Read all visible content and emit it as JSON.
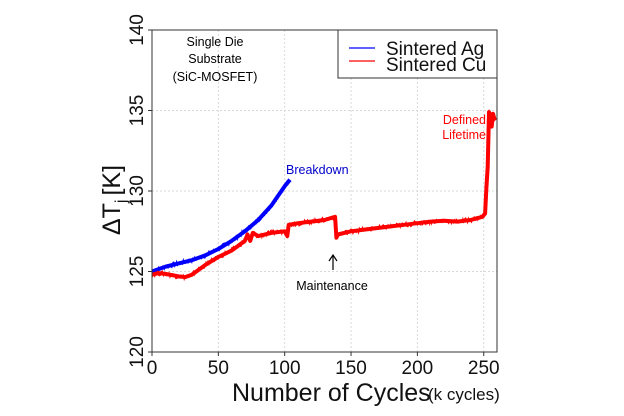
{
  "chart_data": {
    "type": "line",
    "title": "",
    "xlabel": "Number of Cycles",
    "xlabel_unit": "(k cycles)",
    "ylabel": "ΔT",
    "ylabel_sub": "j",
    "ylabel_unit": "[K]",
    "xlim": [
      0,
      260
    ],
    "ylim": [
      120,
      140
    ],
    "xticks": [
      0,
      50,
      100,
      150,
      200,
      250
    ],
    "yticks": [
      120,
      125,
      130,
      135,
      140
    ],
    "xtick_labels": [
      "0",
      "50",
      "100",
      "150",
      "200",
      "250"
    ],
    "ytick_labels": [
      "120",
      "125",
      "130",
      "135",
      "140"
    ],
    "grid": true,
    "legend": {
      "placement": "top-right",
      "entries": [
        "Sintered Ag",
        "Sintered Cu"
      ]
    },
    "series": [
      {
        "name": "Sintered Ag",
        "color": "#0000ff",
        "x": [
          0,
          10,
          20,
          30,
          40,
          50,
          60,
          70,
          80,
          90,
          95,
          100,
          104
        ],
        "y": [
          125.0,
          125.3,
          125.5,
          125.7,
          126.0,
          126.4,
          126.9,
          127.5,
          128.2,
          129.1,
          129.7,
          130.3,
          130.7
        ]
      },
      {
        "name": "Sintered Cu",
        "color": "#ff0000",
        "x": [
          0,
          5,
          10,
          20,
          25,
          30,
          40,
          50,
          60,
          70,
          72,
          74,
          76,
          80,
          90,
          100,
          102,
          103,
          110,
          120,
          130,
          138,
          139,
          140,
          150,
          160,
          170,
          180,
          190,
          200,
          210,
          220,
          230,
          240,
          249,
          251,
          252,
          253,
          254,
          255,
          256,
          257,
          258,
          259
        ],
        "y": [
          124.8,
          124.9,
          124.85,
          124.7,
          124.65,
          124.8,
          125.4,
          125.9,
          126.3,
          126.9,
          127.3,
          126.9,
          127.4,
          127.2,
          127.4,
          127.5,
          127.2,
          127.9,
          128.0,
          128.1,
          128.2,
          128.4,
          127.1,
          127.3,
          127.5,
          127.6,
          127.7,
          127.8,
          127.9,
          128.0,
          128.1,
          128.15,
          128.1,
          128.2,
          128.4,
          128.6,
          130.2,
          131.5,
          134.9,
          134.6,
          134.0,
          134.8,
          134.5,
          134.4
        ]
      }
    ],
    "annotations": [
      {
        "text": "Single Die",
        "color": "#000000"
      },
      {
        "text": "Substrate",
        "color": "#000000"
      },
      {
        "text": "(SiC-MOSFET)",
        "color": "#000000"
      },
      {
        "text": "Breakdown",
        "color": "#0000cc",
        "x": 104,
        "y": 130.7
      },
      {
        "text": "Maintenance",
        "color": "#000000",
        "x": 138,
        "y": 127.0
      },
      {
        "text": "Defined",
        "color": "#ff0000",
        "x": 253,
        "y": 134.9
      },
      {
        "text": "Lifetime",
        "color": "#ff0000",
        "x": 253,
        "y": 134.9
      }
    ]
  }
}
